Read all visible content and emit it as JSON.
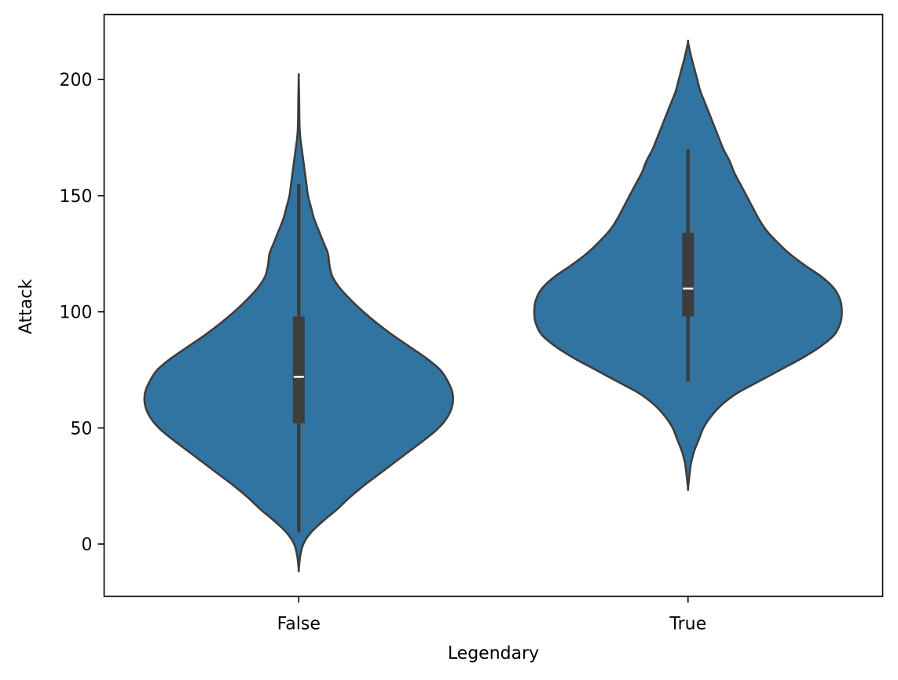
{
  "chart_data": {
    "type": "violin",
    "title": "",
    "xlabel": "Legendary",
    "ylabel": "Attack",
    "ylim": [
      -22.5,
      228
    ],
    "yticks": [
      0,
      50,
      100,
      150,
      200
    ],
    "ytick_labels": [
      "0",
      "50",
      "100",
      "150",
      "200"
    ],
    "grid": false,
    "legend": "none",
    "fill_color": "#3274a1",
    "edge_color": "#3d3d3d",
    "categories": [
      "False",
      "True"
    ],
    "violins": [
      {
        "category": "False",
        "kde_min": -11,
        "kde_max": 201,
        "density_profile": [
          [
            -11,
            0.0
          ],
          [
            -5,
            0.01
          ],
          [
            0,
            0.03
          ],
          [
            5,
            0.08
          ],
          [
            10,
            0.16
          ],
          [
            15,
            0.25
          ],
          [
            20,
            0.33
          ],
          [
            25,
            0.42
          ],
          [
            30,
            0.52
          ],
          [
            35,
            0.62
          ],
          [
            40,
            0.72
          ],
          [
            45,
            0.82
          ],
          [
            50,
            0.91
          ],
          [
            55,
            0.97
          ],
          [
            60,
            1.0
          ],
          [
            65,
            1.0
          ],
          [
            70,
            0.97
          ],
          [
            75,
            0.92
          ],
          [
            80,
            0.83
          ],
          [
            85,
            0.72
          ],
          [
            90,
            0.61
          ],
          [
            95,
            0.51
          ],
          [
            100,
            0.42
          ],
          [
            105,
            0.34
          ],
          [
            110,
            0.27
          ],
          [
            115,
            0.22
          ],
          [
            120,
            0.2
          ],
          [
            125,
            0.19
          ],
          [
            130,
            0.16
          ],
          [
            135,
            0.13
          ],
          [
            140,
            0.1
          ],
          [
            145,
            0.08
          ],
          [
            150,
            0.06
          ],
          [
            155,
            0.05
          ],
          [
            160,
            0.04
          ],
          [
            165,
            0.03
          ],
          [
            170,
            0.02
          ],
          [
            175,
            0.01
          ],
          [
            180,
            0.005
          ],
          [
            190,
            0.003
          ],
          [
            201,
            0.0
          ]
        ],
        "whisker_low": 5,
        "q1": 52,
        "median": 72,
        "q3": 98,
        "whisker_high": 155
      },
      {
        "category": "True",
        "kde_min": 24,
        "kde_max": 216,
        "density_profile": [
          [
            24,
            0.0
          ],
          [
            30,
            0.01
          ],
          [
            35,
            0.02
          ],
          [
            40,
            0.04
          ],
          [
            45,
            0.07
          ],
          [
            50,
            0.1
          ],
          [
            55,
            0.15
          ],
          [
            60,
            0.22
          ],
          [
            65,
            0.32
          ],
          [
            70,
            0.46
          ],
          [
            75,
            0.6
          ],
          [
            80,
            0.74
          ],
          [
            85,
            0.86
          ],
          [
            90,
            0.95
          ],
          [
            95,
            0.99
          ],
          [
            100,
            1.0
          ],
          [
            105,
            0.99
          ],
          [
            110,
            0.95
          ],
          [
            115,
            0.87
          ],
          [
            120,
            0.76
          ],
          [
            125,
            0.66
          ],
          [
            130,
            0.58
          ],
          [
            135,
            0.51
          ],
          [
            140,
            0.46
          ],
          [
            145,
            0.42
          ],
          [
            150,
            0.38
          ],
          [
            155,
            0.34
          ],
          [
            160,
            0.3
          ],
          [
            165,
            0.27
          ],
          [
            170,
            0.23
          ],
          [
            175,
            0.2
          ],
          [
            180,
            0.17
          ],
          [
            185,
            0.14
          ],
          [
            190,
            0.11
          ],
          [
            195,
            0.08
          ],
          [
            200,
            0.06
          ],
          [
            205,
            0.04
          ],
          [
            210,
            0.02
          ],
          [
            216,
            0.0
          ]
        ],
        "whisker_low": 70,
        "q1": 98,
        "median": 110,
        "q3": 134,
        "whisker_high": 170
      }
    ]
  }
}
